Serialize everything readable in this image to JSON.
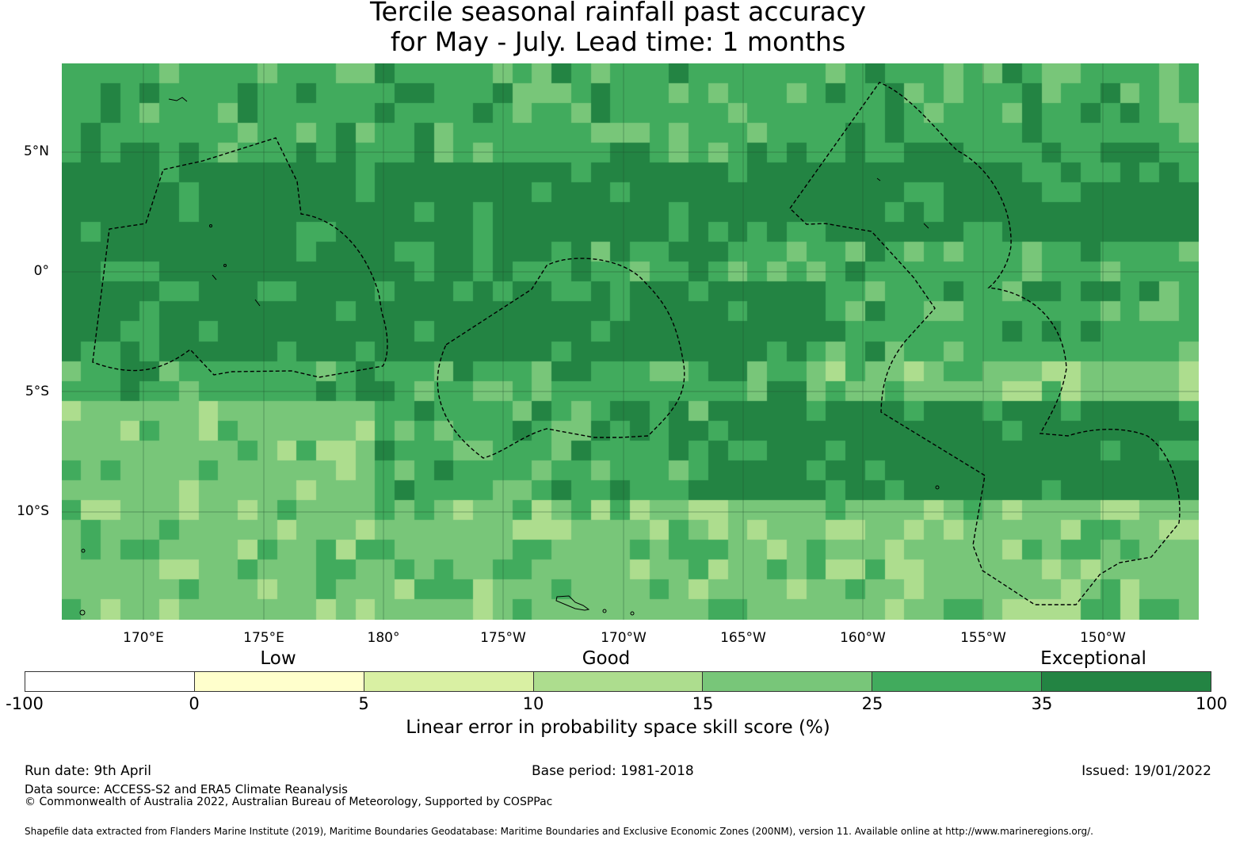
{
  "title": {
    "line1": "Tercile seasonal rainfall past accuracy",
    "line2": "for May - July. Lead time: 1 months"
  },
  "map": {
    "lat_labels": [
      "5°N",
      "0°",
      "5°S",
      "10°S"
    ],
    "lon_labels": [
      "170°E",
      "175°E",
      "180°",
      "175°W",
      "170°W",
      "165°W",
      "160°W",
      "155°W",
      "150°W"
    ],
    "extent": {
      "lon_min": 166.6,
      "lon_max": 214.0,
      "lat_min": -14.5,
      "lat_max": 8.7
    },
    "grid_resolution_deg": 0.83
  },
  "legend": {
    "categories": [
      "Low",
      "Good",
      "Exceptional"
    ],
    "ticks": [
      "-100",
      "0",
      "5",
      "10",
      "15",
      "25",
      "35",
      "100"
    ],
    "colors": [
      "#ffffff",
      "#ffffcc",
      "#d9f0a3",
      "#addd8e",
      "#78c679",
      "#41ab5d",
      "#238443"
    ],
    "title": "Linear error in probability space skill score (%)"
  },
  "footer": {
    "run_date": "Run date: 9th April",
    "base_period": "Base period: 1981-2018",
    "issued": "Issued: 19/01/2022",
    "data_source": "Data source: ACCESS-S2 and ERA5 Climate Reanalysis",
    "copyright": "© Commonwealth of Australia 2022, Australian Bureau of Meteorology, Supported by COSPPac",
    "shapefile": "Shapefile data extracted from Flanders Marine Institute (2019), Maritime Boundaries Geodatabase: Maritime Boundaries and Exclusive Economic Zones (200NM), version 11. Available online at http://www.marineregions.org/."
  }
}
